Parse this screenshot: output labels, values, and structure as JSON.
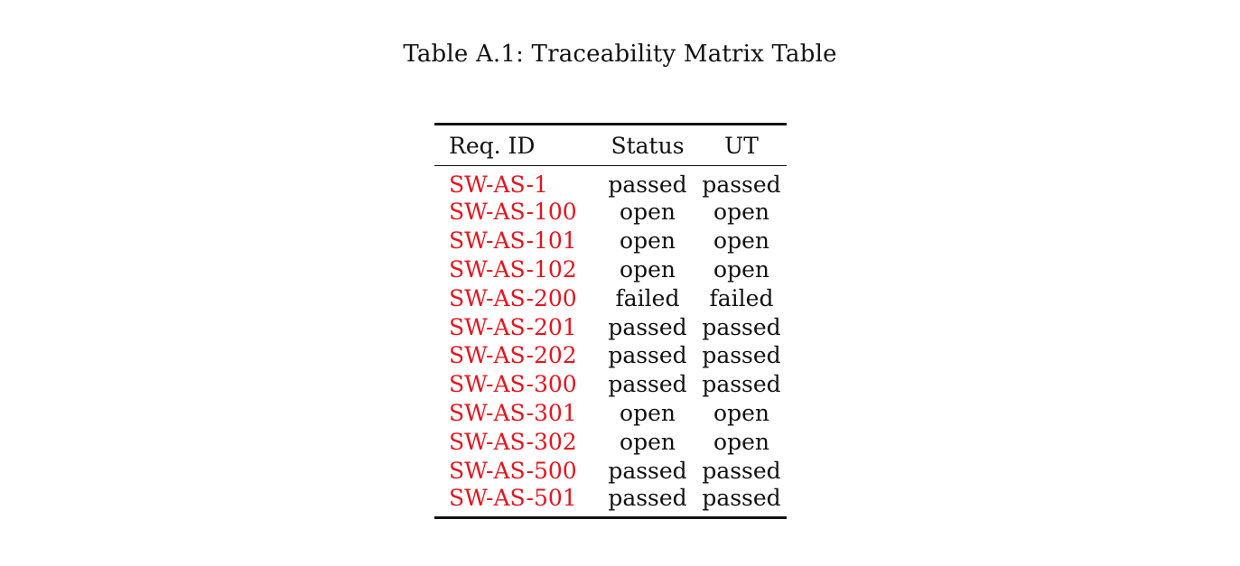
{
  "caption": "Table A.1: Traceability Matrix Table",
  "colors": {
    "link": "#e8141d",
    "text": "#111111",
    "background": "#ffffff"
  },
  "table": {
    "headers": {
      "req_id": "Req. ID",
      "status": "Status",
      "ut": "UT"
    },
    "rows": [
      {
        "id": "SW-AS-1",
        "status": "passed",
        "ut": "passed"
      },
      {
        "id": "SW-AS-100",
        "status": "open",
        "ut": "open"
      },
      {
        "id": "SW-AS-101",
        "status": "open",
        "ut": "open"
      },
      {
        "id": "SW-AS-102",
        "status": "open",
        "ut": "open"
      },
      {
        "id": "SW-AS-200",
        "status": "failed",
        "ut": "failed"
      },
      {
        "id": "SW-AS-201",
        "status": "passed",
        "ut": "passed"
      },
      {
        "id": "SW-AS-202",
        "status": "passed",
        "ut": "passed"
      },
      {
        "id": "SW-AS-300",
        "status": "passed",
        "ut": "passed"
      },
      {
        "id": "SW-AS-301",
        "status": "open",
        "ut": "open"
      },
      {
        "id": "SW-AS-302",
        "status": "open",
        "ut": "open"
      },
      {
        "id": "SW-AS-500",
        "status": "passed",
        "ut": "passed"
      },
      {
        "id": "SW-AS-501",
        "status": "passed",
        "ut": "passed"
      }
    ]
  }
}
